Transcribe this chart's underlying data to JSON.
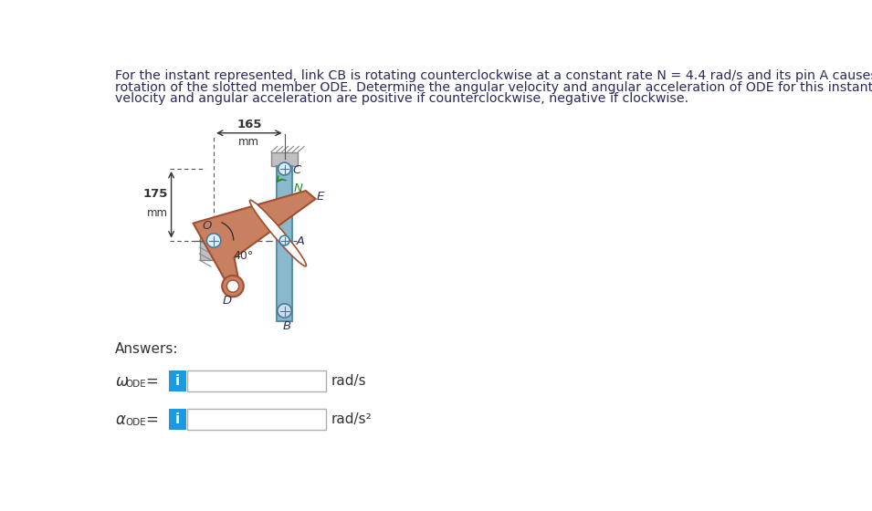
{
  "title_text_line1": "For the instant represented, link CB is rotating counterclockwise at a constant rate N = 4.4 rad/s and its pin A causes a clockwise",
  "title_text_line2": "rotation of the slotted member ODE. Determine the angular velocity and angular acceleration of ODE for this instant. The angular",
  "title_text_line3": "velocity and angular acceleration are positive if counterclockwise, negative if clockwise.",
  "title_color": "#2a2a5a",
  "title_fontsize": 10.2,
  "dim_165": "165",
  "dim_165_unit": "mm",
  "dim_175": "175",
  "dim_175_unit": "mm",
  "angle_label": "40",
  "label_C": "C",
  "label_N": "N",
  "label_E": "E",
  "label_O": "O",
  "label_A": "A",
  "label_D": "D",
  "label_B": "B",
  "answers_label": "Answers:",
  "unit_rads": "rad/s",
  "unit_rads2": "rad/s²",
  "bg_color": "#ffffff",
  "bar_color": "#8ab8cc",
  "bar_edge": "#5a90aa",
  "member_color": "#c88060",
  "member_edge": "#a05030",
  "slot_color": "#e8c8b8",
  "slot_edge": "#a05030",
  "wall_color": "#c0c0c0",
  "wall_hatch": "#909090",
  "pin_face": "#e0eef8",
  "pin_edge": "#4a7a9a",
  "info_btn_color": "#1a9ae0",
  "info_btn_text": "i",
  "input_border": "#b0b0b0",
  "text_dark": "#333333",
  "dim_arrow_color": "#333333",
  "N_arrow_color": "#2a8a30",
  "N_label_color": "#2a8a30"
}
